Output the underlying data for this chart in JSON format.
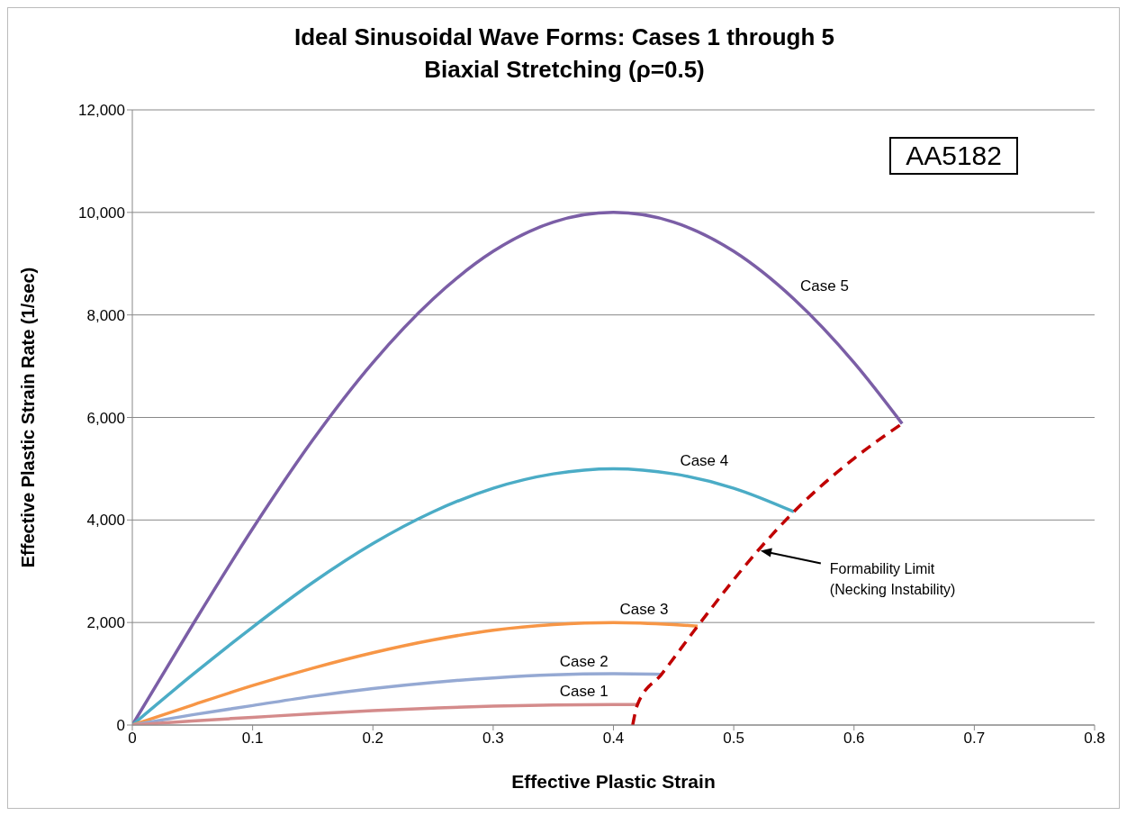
{
  "chart_data": {
    "type": "line",
    "title": "Ideal Sinusoidal Wave Forms: Cases 1 through 5\nBiaxial Stretching (ρ=0.5)",
    "xlabel": "Effective Plastic Strain",
    "ylabel": "Effective Plastic Strain Rate (1/sec)",
    "series": [
      {
        "name": "Case 5",
        "color": "#7b5ea6",
        "x": [
          0,
          0.05,
          0.1,
          0.15,
          0.2,
          0.25,
          0.3,
          0.35,
          0.4,
          0.45,
          0.5,
          0.55,
          0.6,
          0.64
        ],
        "values": [
          0,
          1950,
          3830,
          5560,
          7070,
          8310,
          9240,
          9810,
          10000,
          9810,
          9240,
          8310,
          7070,
          5880
        ]
      },
      {
        "name": "Case 4",
        "color": "#4bacc6",
        "x": [
          0,
          0.05,
          0.1,
          0.15,
          0.2,
          0.25,
          0.3,
          0.35,
          0.4,
          0.45,
          0.5,
          0.55
        ],
        "values": [
          0,
          980,
          1910,
          2780,
          3540,
          4160,
          4620,
          4900,
          5000,
          4900,
          4620,
          4160
        ]
      },
      {
        "name": "Case 3",
        "color": "#f79646",
        "x": [
          0,
          0.05,
          0.1,
          0.15,
          0.2,
          0.25,
          0.3,
          0.35,
          0.4,
          0.45,
          0.47
        ],
        "values": [
          0,
          390,
          770,
          1110,
          1410,
          1660,
          1850,
          1960,
          2000,
          1960,
          1930
        ]
      },
      {
        "name": "Case 2",
        "color": "#95a9d3",
        "x": [
          0,
          0.05,
          0.1,
          0.15,
          0.2,
          0.25,
          0.3,
          0.35,
          0.4,
          0.44
        ],
        "values": [
          0,
          200,
          380,
          560,
          710,
          830,
          920,
          980,
          1000,
          990
        ]
      },
      {
        "name": "Case 1",
        "color": "#d48b8b",
        "x": [
          0,
          0.05,
          0.1,
          0.15,
          0.2,
          0.25,
          0.3,
          0.35,
          0.4,
          0.42
        ],
        "values": [
          0,
          80,
          150,
          220,
          280,
          330,
          370,
          390,
          400,
          400
        ]
      },
      {
        "color": "#c00000",
        "line_style": "dashed",
        "x": [
          0.416,
          0.42,
          0.44,
          0.47,
          0.52,
          0.55,
          0.6,
          0.64
        ],
        "values": [
          0,
          400,
          990,
          1930,
          3400,
          4160,
          5200,
          5880
        ]
      }
    ],
    "annotations": [
      {
        "text": "Formability Limit\n(Necking Instability)",
        "x": 0.52,
        "y": 3400
      },
      "AA5182"
    ],
    "xlim": [
      0,
      0.8
    ],
    "xticks": [
      0,
      0.1,
      0.2,
      0.3,
      0.4,
      0.5,
      0.6,
      0.7,
      0.8
    ],
    "ylim": [
      0,
      12000
    ],
    "yticks": [
      {
        "value": 0,
        "label": "0"
      },
      {
        "value": 2000,
        "label": "2,000"
      },
      {
        "value": 4000,
        "label": "4,000"
      },
      {
        "value": 6000,
        "label": "6,000"
      },
      {
        "value": 8000,
        "label": "8,000"
      },
      {
        "value": 10000,
        "label": "10,000"
      },
      {
        "value": 12000,
        "label": "12,000"
      }
    ],
    "grid": "y",
    "marker": "none",
    "line_style": "solid"
  }
}
